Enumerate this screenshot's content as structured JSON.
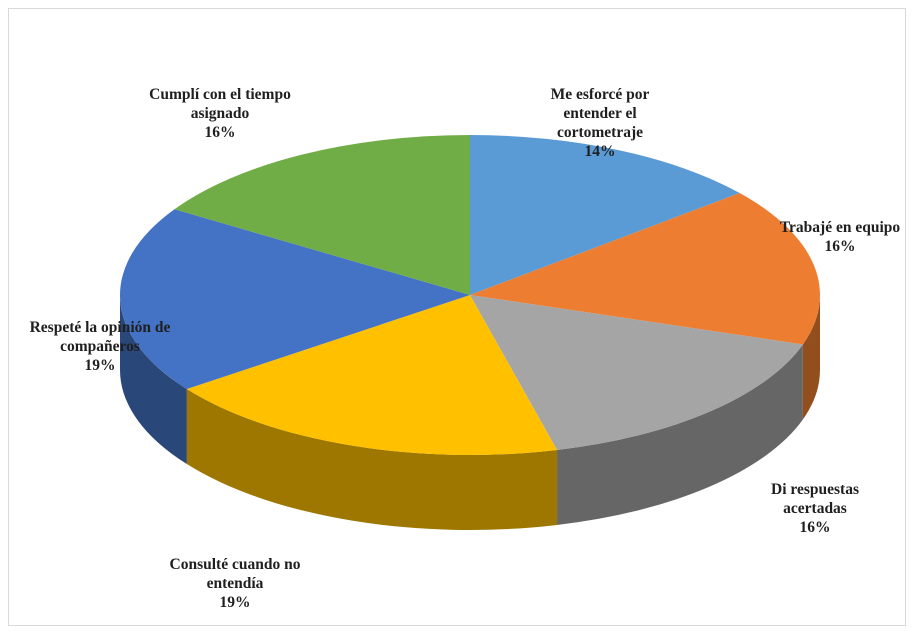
{
  "chart_data": {
    "type": "pie",
    "categories": [
      "Me esforcé por entender el cortometraje",
      "Trabajé en equipo",
      "Di respuestas acertadas",
      "Consulté cuando no entendía",
      "Respeté la opinión de compañeros",
      "Cumplí con el tiempo asignado"
    ],
    "values": [
      14,
      16,
      16,
      19,
      19,
      16
    ],
    "value_labels": [
      "14%",
      "16%",
      "16%",
      "19%",
      "19%",
      "16%"
    ],
    "colors": [
      "#5b9bd5",
      "#ed7d31",
      "#a5a5a5",
      "#ffc000",
      "#4472c4",
      "#70ad47"
    ]
  }
}
